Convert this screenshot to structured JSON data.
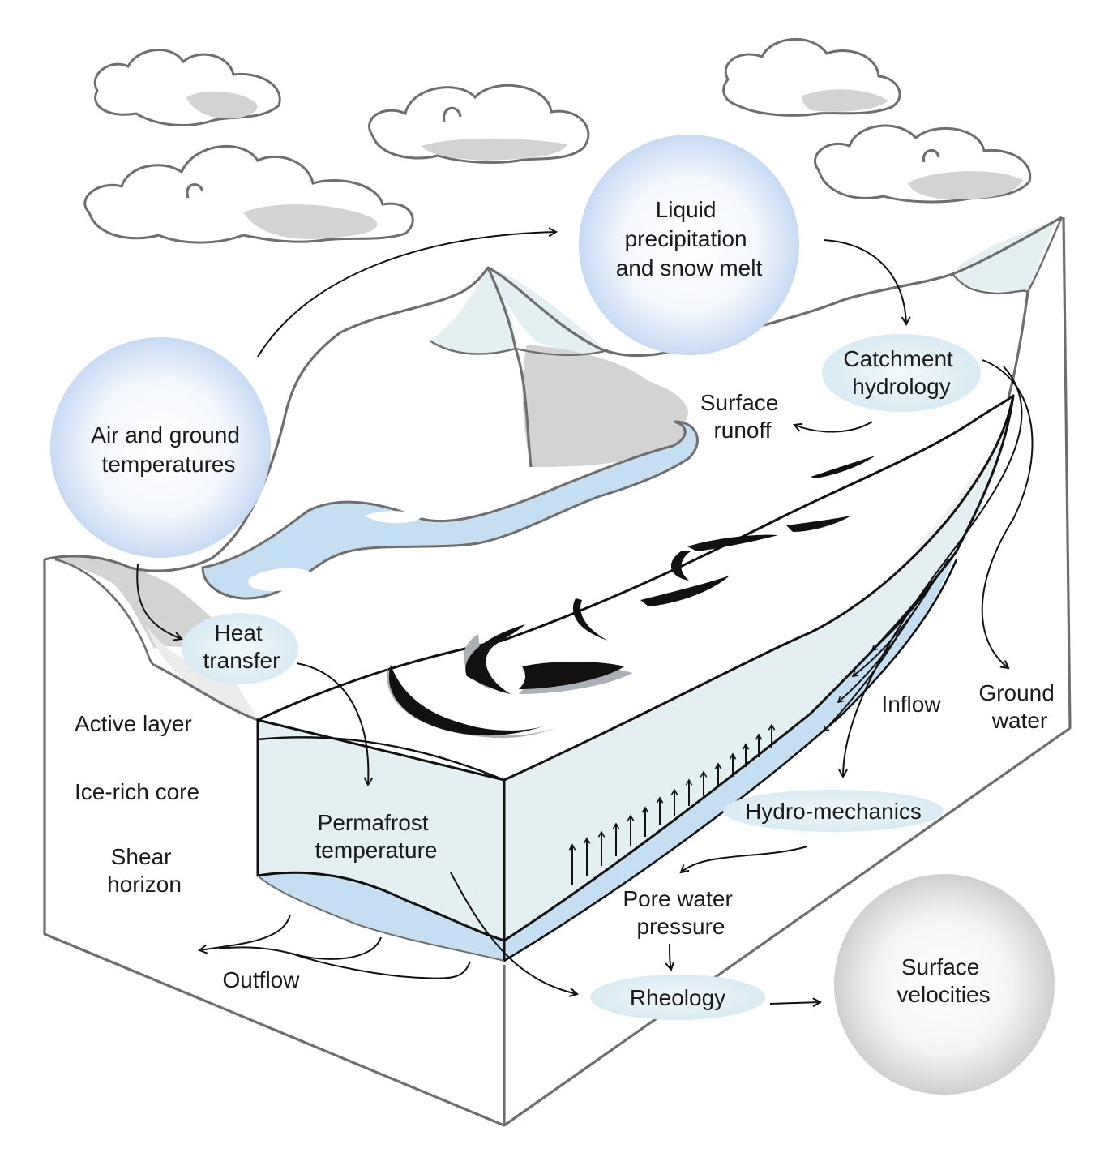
{
  "labels": {
    "air_ground_temperatures": [
      "Air and ground",
      "temperatures"
    ],
    "liquid_precipitation": [
      "Liquid",
      "precipitation",
      "and snow melt"
    ],
    "catchment_hydrology": [
      "Catchment",
      "hydrology"
    ],
    "surface_runoff": [
      "Surface",
      "runoff"
    ],
    "heat_transfer": [
      "Heat",
      "transfer"
    ],
    "active_layer": "Active layer",
    "ice_rich_core": "Ice-rich core",
    "shear_horizon": [
      "Shear",
      "horizon"
    ],
    "permafrost_temperature": [
      "Permafrost",
      "temperature"
    ],
    "inflow": "Inflow",
    "ground_water": [
      "Ground",
      "water"
    ],
    "hydro_mechanics": "Hydro-mechanics",
    "pore_water_pressure": [
      "Pore water",
      "pressure"
    ],
    "outflow": "Outflow",
    "rheology": "Rheology",
    "surface_velocities": [
      "Surface",
      "velocities"
    ]
  },
  "colors": {
    "blue_node": "#d7e6f7",
    "grey_node": "#d9d9d9",
    "ice_face": "#e4eff1",
    "water": "#c6def2",
    "mountain_shadow": "#d3d3d3",
    "box_outline": "#6e6e6e"
  }
}
